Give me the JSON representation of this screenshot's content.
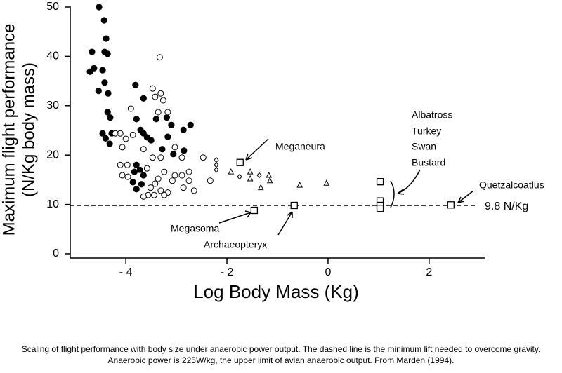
{
  "chart_data": {
    "type": "scatter",
    "y_label_lines": [
      "Maximum flight performance",
      "(N/Kg body mass)"
    ],
    "x_label": "Log Body Mass (Kg)",
    "xlim": [
      -5.1,
      3.1
    ],
    "ylim": [
      -0.8,
      50
    ],
    "xticks": [
      {
        "value": -4,
        "label": "- 4"
      },
      {
        "value": -2,
        "label": "- 2"
      },
      0,
      2
    ],
    "yticks": [
      0,
      10,
      20,
      30,
      40,
      50
    ],
    "grid": false,
    "reference_line": {
      "value": 9.8,
      "label": "9.8 N/Kg"
    },
    "series": [
      {
        "marker": "filled-circle",
        "color": "#000000",
        "x": [
          -4.53,
          -4.43,
          -4.39,
          -4.67,
          -4.42,
          -4.36,
          -4.63,
          -4.71,
          -4.46,
          -4.42,
          -4.54,
          -4.35,
          -4.36,
          -4.31,
          -4.46,
          -4.28,
          -4.4,
          -4.32,
          -3.81,
          -3.65,
          -3.79,
          -3.71,
          -3.65,
          -3.58,
          -3.5,
          -3.4,
          -3.19,
          -3.1,
          -2.86,
          -2.72,
          -3.28,
          -3.06,
          -2.85,
          -3.79,
          -3.72,
          -3.65,
          -3.86,
          -3.79,
          -3.69,
          -3.83,
          -3.17
        ],
        "values": [
          50,
          47.3,
          43.6,
          40.9,
          40.9,
          40.5,
          37.6,
          36.9,
          37.2,
          34.7,
          33,
          32.5,
          28.7,
          27.6,
          24.4,
          24.4,
          23.4,
          22.3,
          34.2,
          31.5,
          27.3,
          25.1,
          24.4,
          23.6,
          23,
          27.3,
          27.6,
          26.1,
          25.1,
          26.1,
          21.2,
          20.2,
          20.9,
          18,
          17,
          15.9,
          14.5,
          13.1,
          14.1,
          16.6,
          23.7
        ]
      },
      {
        "marker": "open-circle",
        "color": "#000000",
        "x": [
          -3.33,
          -3.47,
          -3.31,
          -3.42,
          -3.26,
          -3.9,
          -3.36,
          -3.17,
          -4.11,
          -3.86,
          -4,
          -3.65,
          -4.07,
          -3.47,
          -3.31,
          -3.03,
          -2.89,
          -2.47,
          -4.11,
          -3.97,
          -4.07,
          -3.96,
          -3.58,
          -3.24,
          -3.03,
          -2.89,
          -2.75,
          -3.36,
          -3.08,
          -3.51,
          -3.31,
          -3.17,
          -3.56,
          -3.44,
          -3.24,
          -2.86,
          -2.65,
          -2.33,
          -2.75,
          -3.65,
          -3.42,
          -4.21
        ],
        "values": [
          39.8,
          33.5,
          32.5,
          31.8,
          31.1,
          29.4,
          28.7,
          28.7,
          24.4,
          24.1,
          23.3,
          21.2,
          21.6,
          19.5,
          19.5,
          21.6,
          19.5,
          19.5,
          18,
          18,
          15.9,
          15.6,
          17.3,
          16.6,
          15.9,
          15.9,
          16.6,
          15.2,
          14.8,
          13.4,
          12.8,
          12.4,
          11.9,
          11.9,
          11.9,
          13.4,
          12.8,
          14.8,
          14.8,
          11.6,
          14.2,
          24.4
        ]
      },
      {
        "marker": "diamond",
        "color": "#000000",
        "x": [
          -2.21,
          -2.21,
          -2.21,
          -1.75,
          -1.36
        ],
        "values": [
          19,
          18,
          17,
          15.6,
          15.9
        ]
      },
      {
        "marker": "triangle",
        "color": "#000000",
        "x": [
          -1.92,
          -1.54,
          -1.17,
          -1.33,
          -1.15,
          -0.56,
          -0.03,
          -1.54
        ],
        "values": [
          16.6,
          16.6,
          15.9,
          13.4,
          14.8,
          13.9,
          14.3,
          15.2
        ]
      },
      {
        "marker": "square",
        "color": "#000000",
        "x": [
          -1.74,
          -1.46,
          -0.67,
          1.03,
          1.03,
          1.03,
          1.03,
          2.43
        ],
        "values": [
          18.5,
          8.8,
          9.8,
          14.6,
          10.7,
          9.8,
          9.2,
          9.9
        ]
      }
    ],
    "annotations": [
      "Meganeura",
      "Albatross",
      "Turkey",
      "Swan",
      "Bustard",
      "Quetzalcoatlus",
      "Megasoma",
      "Archaeopteryx"
    ],
    "caption": "Scaling of flight performance with body size under anaerobic power output. The dashed line is the minimum lift needed to overcome gravity. Anaerobic power is 225W/kg, the upper limit of avian anaerobic output. From Marden (1994)."
  }
}
